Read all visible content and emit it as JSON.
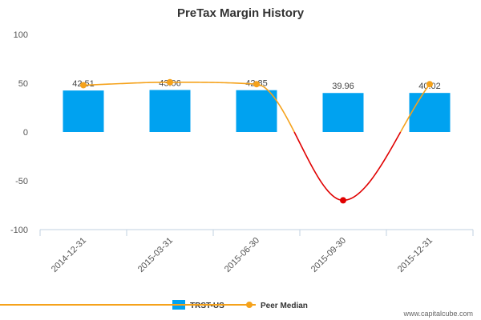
{
  "credit": "www.capitalcube.com",
  "colors": {
    "bar": "#00a2f0",
    "peer_line": "#f5a21b",
    "peer_line_negative": "#e00000",
    "axis": "#c0d0e0"
  },
  "chart_data": {
    "type": "bar",
    "title": "PreTax Margin History",
    "xlabel": "",
    "ylabel": "",
    "ylim": [
      -100,
      100
    ],
    "yticks": [
      100,
      50,
      0,
      -50,
      -100
    ],
    "categories": [
      "2014-12-31",
      "2015-03-31",
      "2015-06-30",
      "2015-09-30",
      "2015-12-31"
    ],
    "series": [
      {
        "name": "TRST-US",
        "type": "bar",
        "values": [
          42.51,
          43.06,
          42.85,
          39.96,
          40.02
        ],
        "labels": [
          "42.51",
          "43.06",
          "42.85",
          "39.96",
          "40.02"
        ]
      },
      {
        "name": "Peer Median",
        "type": "line",
        "values": [
          48,
          51,
          49,
          -70,
          49
        ]
      }
    ],
    "legend_position": "bottom",
    "grid": false
  }
}
